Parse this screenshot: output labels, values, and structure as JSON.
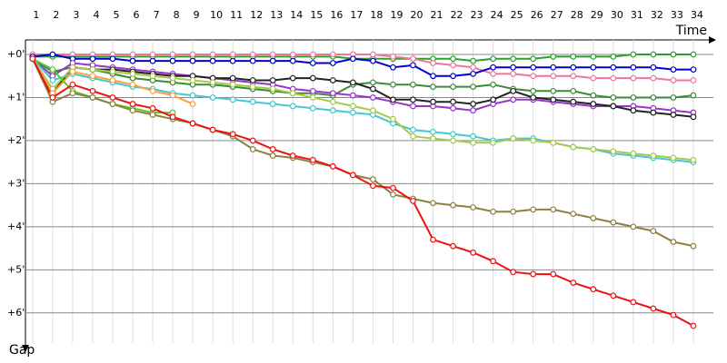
{
  "chart_data": {
    "type": "line",
    "x_label": "Time",
    "y_label": "Gap",
    "x": [
      1,
      2,
      3,
      4,
      5,
      6,
      7,
      8,
      9,
      10,
      11,
      12,
      13,
      14,
      15,
      16,
      17,
      18,
      19,
      20,
      21,
      22,
      23,
      24,
      25,
      26,
      27,
      28,
      29,
      30,
      31,
      32,
      33,
      34
    ],
    "xticks": [
      1,
      2,
      3,
      4,
      5,
      6,
      7,
      8,
      9,
      10,
      11,
      12,
      13,
      14,
      15,
      16,
      17,
      18,
      19,
      20,
      21,
      22,
      23,
      24,
      25,
      26,
      27,
      28,
      29,
      30,
      31,
      32,
      33,
      34
    ],
    "xlim": [
      0.87,
      35
    ],
    "ylim": [
      0,
      6.7
    ],
    "yticks": [
      {
        "value": 0,
        "label": "+0'"
      },
      {
        "value": 1,
        "label": "+1'"
      },
      {
        "value": 2,
        "label": "+2'"
      },
      {
        "value": 3,
        "label": "+3'"
      },
      {
        "value": 4,
        "label": "+4'"
      },
      {
        "value": 5,
        "label": "+5'"
      },
      {
        "value": 6,
        "label": "+6'"
      }
    ],
    "grid": true,
    "series": [
      {
        "color": "#2ca02c",
        "values": [
          0.05,
          0.05,
          0.05,
          0.05,
          0.05,
          0.05,
          0.05,
          0.05,
          0.05,
          0.05,
          0.05,
          0.05,
          0.05,
          0.05,
          0.05,
          0.05,
          0.1,
          0.1,
          0.1,
          0.1,
          0.1,
          0.1,
          0.15,
          0.1,
          0.1,
          0.1,
          0.05,
          0.05,
          0.05,
          0.05,
          0,
          0,
          0,
          0
        ]
      },
      {
        "color": "#ee7799",
        "values": [
          0,
          0,
          0,
          0,
          0,
          0,
          0,
          0,
          0,
          0,
          0,
          0,
          0,
          0,
          0,
          0,
          0,
          0,
          0.05,
          0.1,
          0.2,
          0.25,
          0.3,
          0.45,
          0.45,
          0.5,
          0.5,
          0.5,
          0.55,
          0.55,
          0.55,
          0.55,
          0.6,
          0.6
        ]
      },
      {
        "color": "#0000cc",
        "values": [
          0.05,
          0,
          0.1,
          0.1,
          0.1,
          0.15,
          0.15,
          0.15,
          0.15,
          0.15,
          0.15,
          0.15,
          0.15,
          0.15,
          0.2,
          0.2,
          0.1,
          0.15,
          0.3,
          0.25,
          0.5,
          0.5,
          0.45,
          0.3,
          0.3,
          0.3,
          0.3,
          0.3,
          0.3,
          0.3,
          0.3,
          0.3,
          0.35,
          0.35
        ]
      },
      {
        "color": "#3a8a3a",
        "values": [
          0.1,
          0.4,
          0.3,
          0.35,
          0.45,
          0.55,
          0.6,
          0.65,
          0.7,
          0.7,
          0.75,
          0.8,
          0.85,
          0.9,
          0.9,
          0.95,
          0.7,
          0.65,
          0.7,
          0.7,
          0.75,
          0.75,
          0.75,
          0.7,
          0.8,
          0.85,
          0.85,
          0.85,
          0.95,
          1,
          1,
          1,
          1,
          0.95
        ]
      },
      {
        "color": "#9933cc",
        "values": [
          0.1,
          0.5,
          0.2,
          0.25,
          0.3,
          0.35,
          0.4,
          0.45,
          0.5,
          0.55,
          0.6,
          0.65,
          0.7,
          0.8,
          0.85,
          0.9,
          0.95,
          1,
          1.1,
          1.2,
          1.2,
          1.25,
          1.3,
          1.15,
          1.05,
          1.05,
          1.1,
          1.15,
          1.2,
          1.2,
          1.2,
          1.25,
          1.3,
          1.35
        ]
      },
      {
        "color": "#222222",
        "values": [
          0.1,
          0.9,
          0.3,
          0.35,
          0.35,
          0.4,
          0.45,
          0.5,
          0.5,
          0.55,
          0.55,
          0.6,
          0.6,
          0.55,
          0.55,
          0.6,
          0.65,
          0.8,
          1.05,
          1.05,
          1.1,
          1.1,
          1.15,
          1.05,
          0.85,
          1,
          1.05,
          1.1,
          1.15,
          1.2,
          1.3,
          1.35,
          1.4,
          1.45
        ]
      },
      {
        "color": "#44c8d0",
        "values": [
          0.1,
          0.6,
          0.45,
          0.55,
          0.65,
          0.75,
          0.8,
          0.9,
          0.95,
          1,
          1.05,
          1.1,
          1.15,
          1.2,
          1.25,
          1.3,
          1.35,
          1.4,
          1.6,
          1.75,
          1.8,
          1.85,
          1.9,
          2,
          1.95,
          1.95,
          2.05,
          2.15,
          2.2,
          2.3,
          2.35,
          2.4,
          2.45,
          2.5
        ]
      },
      {
        "color": "#a8c84a",
        "values": [
          0.1,
          0.8,
          0.3,
          0.35,
          0.4,
          0.45,
          0.5,
          0.55,
          0.6,
          0.65,
          0.7,
          0.75,
          0.8,
          0.9,
          1,
          1.1,
          1.2,
          1.3,
          1.5,
          1.9,
          1.95,
          2,
          2.05,
          2.05,
          1.95,
          2,
          2.05,
          2.15,
          2.2,
          2.25,
          2.3,
          2.35,
          2.4,
          2.45
        ]
      },
      {
        "color": "#ffa040",
        "values": [
          0.1,
          0.9,
          0.4,
          0.5,
          0.6,
          0.7,
          0.85,
          0.95,
          1.15,
          null,
          null,
          null,
          null,
          null,
          null,
          null,
          null,
          null,
          null,
          null,
          null,
          null,
          null,
          null,
          null,
          null,
          null,
          null,
          null,
          null,
          null,
          null,
          null,
          null
        ]
      },
      {
        "color": "#55cc22",
        "values": [
          0.1,
          0.35,
          0.85,
          1,
          1.15,
          1.25,
          1.35,
          1.35,
          null,
          null,
          null,
          null,
          null,
          null,
          null,
          null,
          null,
          null,
          null,
          null,
          null,
          null,
          null,
          null,
          null,
          null,
          null,
          null,
          null,
          null,
          null,
          null,
          null,
          null
        ]
      },
      {
        "color": "#8b8040",
        "values": [
          0.1,
          1.1,
          0.9,
          1,
          1.15,
          1.3,
          1.4,
          1.5,
          1.6,
          1.75,
          1.9,
          2.2,
          2.35,
          2.4,
          2.5,
          2.6,
          2.8,
          2.9,
          3.25,
          3.35,
          3.45,
          3.5,
          3.55,
          3.65,
          3.65,
          3.6,
          3.6,
          3.7,
          3.8,
          3.9,
          4,
          4.1,
          4.35,
          4.45
        ]
      },
      {
        "color": "#ee1111",
        "values": [
          0.1,
          1,
          0.7,
          0.85,
          1,
          1.15,
          1.25,
          1.45,
          1.6,
          1.75,
          1.85,
          2,
          2.2,
          2.35,
          2.45,
          2.6,
          2.8,
          3.05,
          3.1,
          3.4,
          4.3,
          4.45,
          4.6,
          4.8,
          5.05,
          5.1,
          5.1,
          5.3,
          5.45,
          5.6,
          5.75,
          5.9,
          6.05,
          6.3
        ]
      }
    ]
  }
}
